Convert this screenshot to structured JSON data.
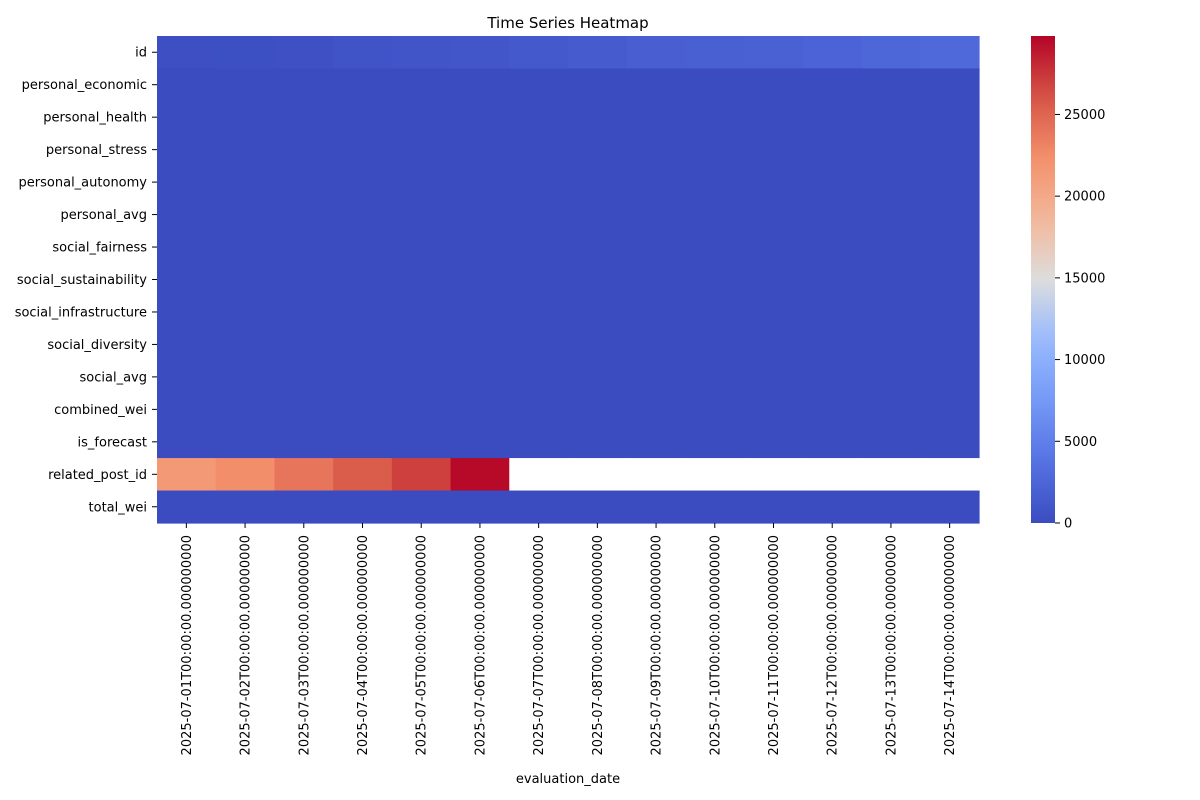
{
  "chart_data": {
    "type": "heatmap",
    "title": "Time Series Heatmap",
    "xlabel": "evaluation_date",
    "ylabel": "",
    "x": [
      "2025-07-01T00:00:00.000000000",
      "2025-07-02T00:00:00.000000000",
      "2025-07-03T00:00:00.000000000",
      "2025-07-04T00:00:00.000000000",
      "2025-07-05T00:00:00.000000000",
      "2025-07-06T00:00:00.000000000",
      "2025-07-07T00:00:00.000000000",
      "2025-07-08T00:00:00.000000000",
      "2025-07-09T00:00:00.000000000",
      "2025-07-10T00:00:00.000000000",
      "2025-07-11T00:00:00.000000000",
      "2025-07-12T00:00:00.000000000",
      "2025-07-13T00:00:00.000000000",
      "2025-07-14T00:00:00.000000000"
    ],
    "y": [
      "id",
      "personal_economic",
      "personal_health",
      "personal_stress",
      "personal_autonomy",
      "personal_avg",
      "social_fairness",
      "social_sustainability",
      "social_infrastructure",
      "social_diversity",
      "social_avg",
      "combined_wei",
      "is_forecast",
      "related_post_id",
      "total_wei"
    ],
    "values": [
      [
        300,
        350,
        400,
        700,
        900,
        1000,
        1300,
        1500,
        1800,
        2000,
        2100,
        2300,
        2600,
        2800
      ],
      [
        1,
        1,
        1,
        1,
        1,
        1,
        1,
        1,
        1,
        1,
        1,
        1,
        1,
        1
      ],
      [
        1,
        1,
        1,
        1,
        1,
        1,
        1,
        1,
        1,
        1,
        1,
        1,
        1,
        1
      ],
      [
        1,
        1,
        1,
        1,
        1,
        1,
        1,
        1,
        1,
        1,
        1,
        1,
        1,
        1
      ],
      [
        1,
        1,
        1,
        1,
        1,
        1,
        1,
        1,
        1,
        1,
        1,
        1,
        1,
        1
      ],
      [
        1,
        1,
        1,
        1,
        1,
        1,
        1,
        1,
        1,
        1,
        1,
        1,
        1,
        1
      ],
      [
        1,
        1,
        1,
        1,
        1,
        1,
        1,
        1,
        1,
        1,
        1,
        1,
        1,
        1
      ],
      [
        1,
        1,
        1,
        1,
        1,
        1,
        1,
        1,
        1,
        1,
        1,
        1,
        1,
        1
      ],
      [
        1,
        1,
        1,
        1,
        1,
        1,
        1,
        1,
        1,
        1,
        1,
        1,
        1,
        1
      ],
      [
        1,
        1,
        1,
        1,
        1,
        1,
        1,
        1,
        1,
        1,
        1,
        1,
        1,
        1
      ],
      [
        1,
        1,
        1,
        1,
        1,
        1,
        1,
        1,
        1,
        1,
        1,
        1,
        1,
        1
      ],
      [
        1,
        1,
        1,
        1,
        1,
        1,
        1,
        1,
        1,
        1,
        1,
        1,
        1,
        1
      ],
      [
        0,
        0,
        0,
        0,
        0,
        0,
        0,
        0,
        0,
        0,
        0,
        0,
        0,
        0
      ],
      [
        21500,
        22500,
        24000,
        25500,
        27000,
        29500,
        null,
        null,
        null,
        null,
        null,
        null,
        null,
        null
      ],
      [
        5,
        5,
        5,
        5,
        5,
        5,
        5,
        5,
        5,
        5,
        5,
        5,
        5,
        5
      ]
    ],
    "colorbar": {
      "colormap": "coolwarm",
      "vmin": 0,
      "vmax": 29800,
      "ticks": [
        0,
        5000,
        10000,
        15000,
        20000,
        25000
      ],
      "tick_labels": [
        "0",
        "5000",
        "10000",
        "15000",
        "20000",
        "25000"
      ]
    },
    "missing_color": "#ffffff",
    "grid": false
  }
}
